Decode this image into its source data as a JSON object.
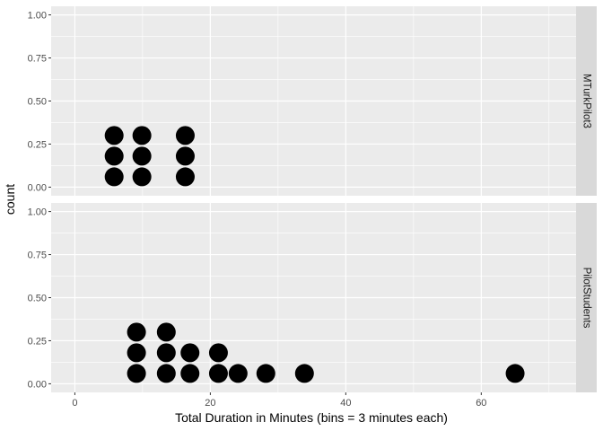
{
  "chart_data": {
    "type": "dotplot",
    "xlabel": "Total Duration in Minutes (bins = 3 minutes each)",
    "ylabel": "count",
    "xlim": [
      -3.5,
      74
    ],
    "ylim": [
      -0.05,
      1.05
    ],
    "x_ticks": [
      0,
      20,
      40,
      60
    ],
    "y_ticks": [
      0,
      0.25,
      0.5,
      0.75,
      1
    ],
    "y_tick_labels": [
      "0.00",
      "0.25",
      "0.50",
      "0.75",
      "1.00"
    ],
    "dot_spacing": 0.12,
    "facets": [
      {
        "label": "MTurkPilot3",
        "stacks": [
          {
            "x": 5.8,
            "count": 3
          },
          {
            "x": 9.9,
            "count": 3
          },
          {
            "x": 16.3,
            "count": 3
          }
        ]
      },
      {
        "label": "PilotStudents",
        "stacks": [
          {
            "x": 9.1,
            "count": 3
          },
          {
            "x": 13.5,
            "count": 3
          },
          {
            "x": 17.0,
            "count": 2
          },
          {
            "x": 21.2,
            "count": 2
          },
          {
            "x": 24.1,
            "count": 1
          },
          {
            "x": 28.2,
            "count": 1
          },
          {
            "x": 33.9,
            "count": 1
          },
          {
            "x": 65.0,
            "count": 1
          }
        ]
      }
    ]
  }
}
